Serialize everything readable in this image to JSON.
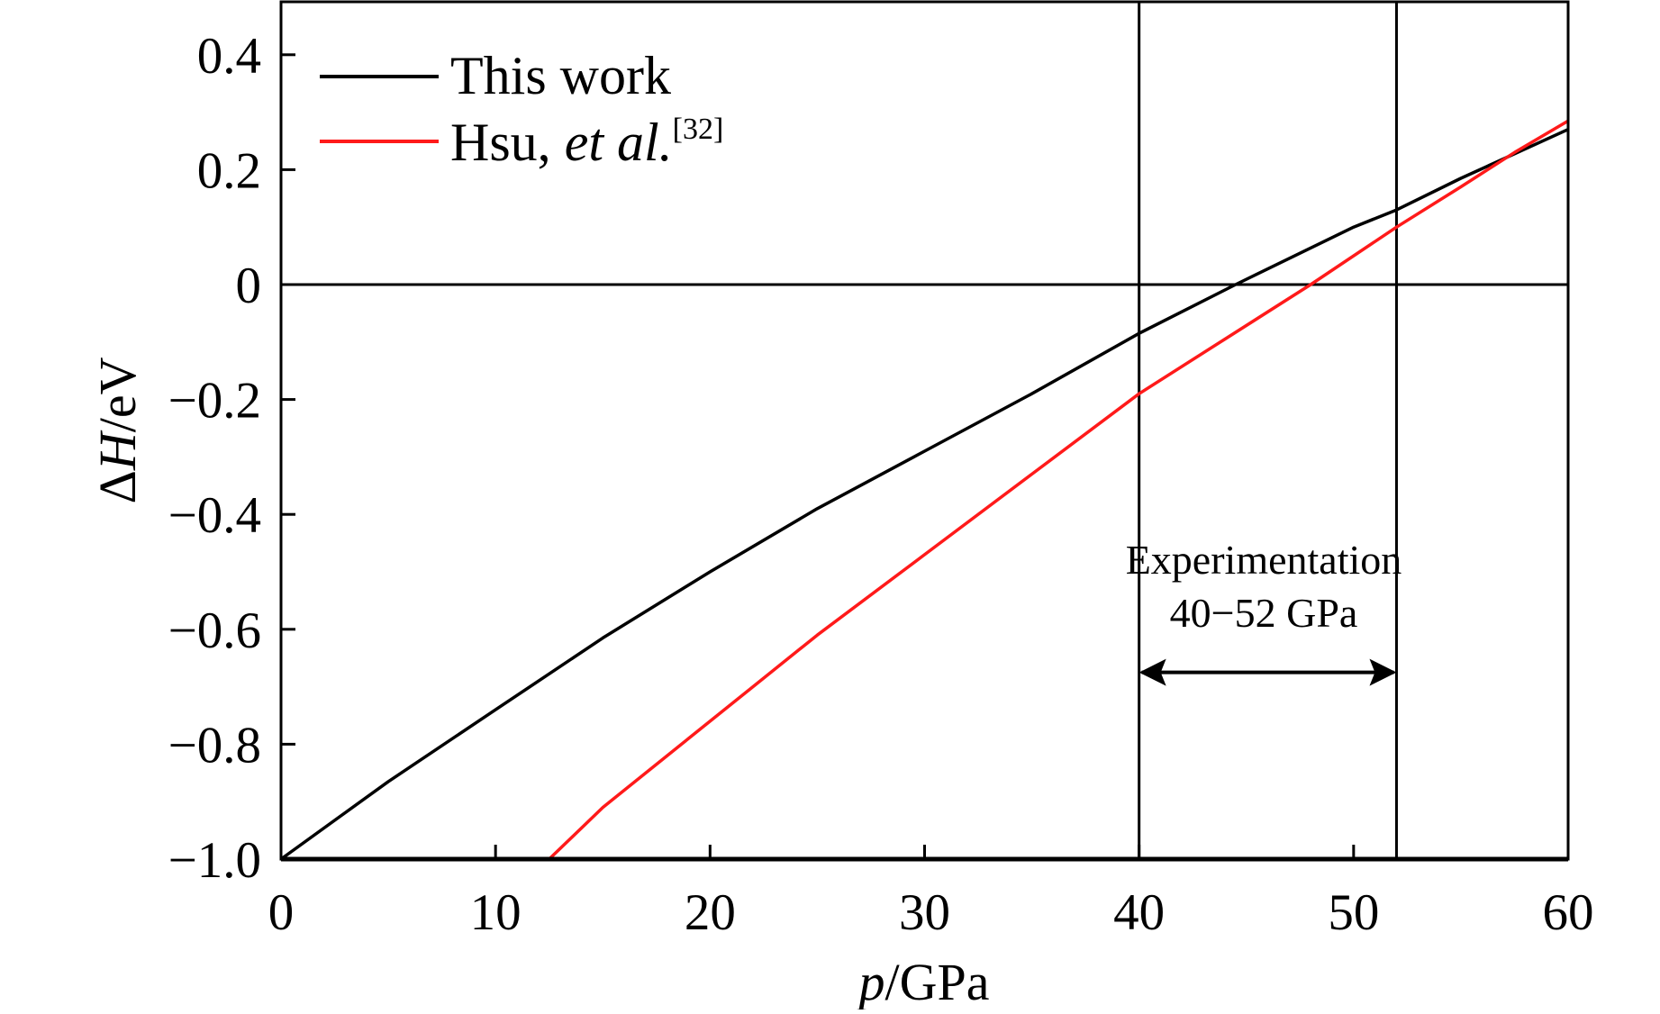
{
  "chart_data": {
    "type": "line",
    "title": "",
    "xlabel_italic": "p",
    "xlabel_rest": "/GPa",
    "ylabel_prefix": "Δ",
    "ylabel_italic": "H",
    "ylabel_rest": "/eV",
    "xlim": [
      0,
      60
    ],
    "ylim": [
      -1.0,
      0.5
    ],
    "xticks": [
      0,
      10,
      20,
      30,
      40,
      50,
      60
    ],
    "xtick_labels": [
      "0",
      "10",
      "20",
      "30",
      "40",
      "50",
      "60"
    ],
    "yticks": [
      0.4,
      0.2,
      0,
      -0.2,
      -0.4,
      -0.6,
      -0.8,
      -1.0
    ],
    "ytick_labels": [
      "0.4",
      "0.2",
      "0",
      "−0.2",
      "−0.4",
      "−0.6",
      "−0.8",
      "−1.0"
    ],
    "grid": false,
    "legend_position": "top-left",
    "series": [
      {
        "name": "This work",
        "color": "#000000",
        "x": [
          0,
          5,
          10,
          15,
          20,
          25,
          30,
          35,
          40,
          44.5,
          50,
          52,
          55,
          60
        ],
        "y": [
          -1.0,
          -0.865,
          -0.74,
          -0.615,
          -0.5,
          -0.39,
          -0.29,
          -0.19,
          -0.085,
          0.0,
          0.1,
          0.13,
          0.185,
          0.27
        ]
      },
      {
        "name": "Hsu, et al.[32]",
        "legend_main": "Hsu, ",
        "legend_italic": "et al.",
        "legend_sup": "[32]",
        "color": "#ff1a1a",
        "x": [
          12.5,
          15,
          20,
          25,
          30,
          35,
          40,
          44,
          48,
          52,
          55,
          57.5,
          60
        ],
        "y": [
          -1.0,
          -0.91,
          -0.76,
          -0.61,
          -0.47,
          -0.33,
          -0.19,
          -0.095,
          0.0,
          0.1,
          0.17,
          0.23,
          0.285
        ]
      }
    ],
    "reference_lines": {
      "horizontal_y": 0,
      "vertical_x": [
        40,
        52
      ]
    },
    "annotation": {
      "line1": "Experimentation",
      "line2": "40−52 GPa",
      "arrow_from": 40,
      "arrow_to": 52,
      "arrow_y": -0.675
    }
  }
}
